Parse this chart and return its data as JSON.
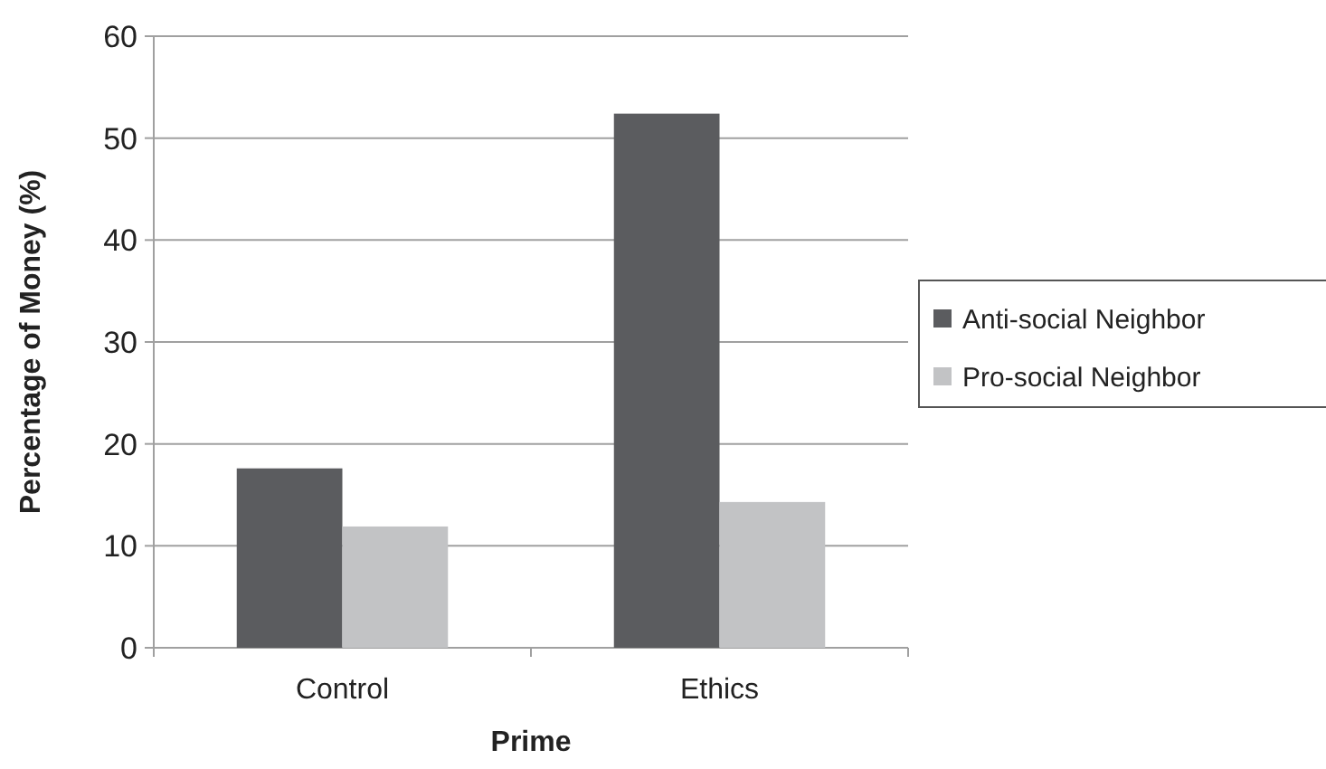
{
  "chart_data": {
    "type": "bar",
    "xlabel": "Prime",
    "ylabel": "Percentage of Money (%)",
    "categories": [
      "Control",
      "Ethics"
    ],
    "series": [
      {
        "name": "Anti-social Neighbor",
        "color": "#5b5c5f",
        "values": [
          17.6,
          52.4
        ]
      },
      {
        "name": "Pro-social Neighbor",
        "color": "#c2c3c5",
        "values": [
          11.9,
          14.3
        ]
      }
    ],
    "ylim": [
      0,
      60
    ],
    "yticks": [
      0,
      10,
      20,
      30,
      40,
      50,
      60
    ],
    "grid": "y",
    "legend": "right"
  }
}
